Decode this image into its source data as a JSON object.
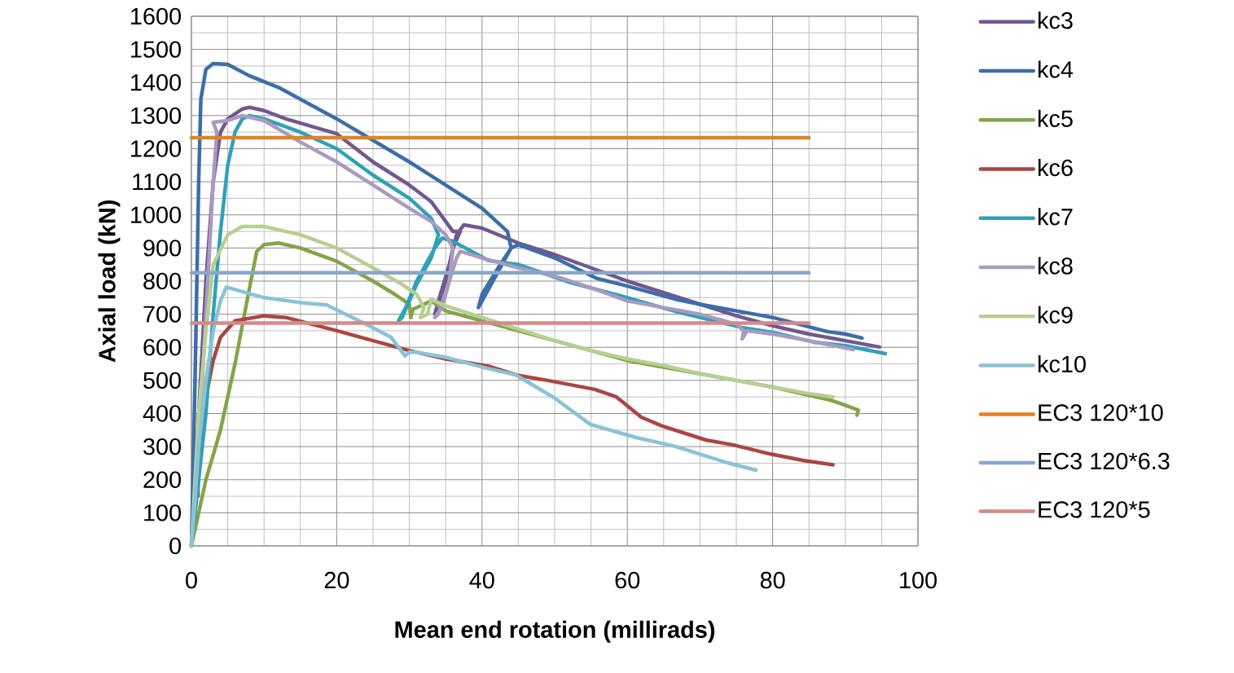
{
  "chart_data": {
    "type": "line",
    "xlabel": "Mean end rotation (millirads)",
    "ylabel": "Axial load (kN)",
    "xlim": [
      0,
      100
    ],
    "xticks": [
      0,
      20,
      40,
      60,
      80,
      100
    ],
    "ylim": [
      0,
      1600
    ],
    "yticks": [
      0,
      100,
      200,
      300,
      400,
      500,
      600,
      700,
      800,
      900,
      1000,
      1100,
      1200,
      1300,
      1400,
      1500,
      1600
    ],
    "grid": true,
    "legend": "right",
    "marker": "none",
    "line_style": "solid",
    "series": [
      {
        "name": "kc3",
        "color": "#71588f",
        "x": [
          0,
          1,
          2,
          3,
          4,
          5,
          7,
          8,
          10,
          13,
          20,
          25,
          30,
          33,
          35,
          36,
          37,
          36,
          35,
          34,
          33.5,
          34,
          35.5,
          36.5,
          37.5,
          40,
          45,
          50,
          55,
          60,
          65,
          70,
          75,
          80,
          85,
          90,
          94.7
        ],
        "values": [
          0,
          400,
          800,
          1100,
          1250,
          1290,
          1320,
          1325,
          1315,
          1290,
          1245,
          1160,
          1090,
          1040,
          980,
          950,
          950,
          900,
          800,
          720,
          700,
          740,
          850,
          940,
          970,
          960,
          915,
          880,
          840,
          800,
          765,
          730,
          695,
          665,
          640,
          620,
          601
        ]
      },
      {
        "name": "kc4",
        "color": "#3c6ea9",
        "x": [
          0,
          0.5,
          1,
          1.3,
          2,
          3,
          5,
          8,
          12,
          20,
          30,
          40,
          43.5,
          44,
          41,
          39.5,
          40,
          42.5,
          44,
          45,
          50,
          55.8,
          60,
          67,
          70,
          78.3,
          80,
          87.6,
          90,
          92.3
        ],
        "values": [
          0,
          500,
          1100,
          1350,
          1440,
          1457,
          1455,
          1420,
          1385,
          1290,
          1160,
          1020,
          950,
          900,
          780,
          720,
          760,
          850,
          900,
          910,
          870,
          808,
          785,
          743,
          730,
          697,
          690,
          647,
          640,
          628
        ]
      },
      {
        "name": "kc5",
        "color": "#84a449",
        "x": [
          0,
          1,
          2,
          4,
          6,
          8,
          9,
          10,
          12,
          15,
          20,
          25,
          28,
          30,
          30.2,
          30.5,
          33,
          35,
          40,
          45,
          50,
          55,
          60,
          65,
          70,
          75,
          80,
          85,
          88,
          90,
          91.8,
          91.6
        ],
        "values": [
          0,
          100,
          200,
          350,
          550,
          780,
          890,
          910,
          915,
          900,
          860,
          800,
          760,
          730,
          690,
          715,
          740,
          710,
          680,
          650,
          620,
          590,
          560,
          540,
          520,
          500,
          480,
          455,
          440,
          425,
          410,
          395
        ]
      },
      {
        "name": "kc6",
        "color": "#aa4643",
        "x": [
          0.9,
          1,
          2,
          3,
          4,
          6,
          10,
          13,
          20,
          30,
          35,
          40.9,
          45,
          49,
          55.5,
          58.5,
          61.9,
          64.8,
          70.8,
          74.6,
          79.6,
          84.3,
          88.3
        ],
        "values": [
          150,
          300,
          450,
          560,
          630,
          680,
          695,
          690,
          650,
          590,
          565,
          543,
          515,
          500,
          473,
          450,
          389,
          362,
          320,
          305,
          278,
          258,
          245
        ]
      },
      {
        "name": "kc7",
        "color": "#31a0b9",
        "x": [
          0,
          2,
          3,
          4,
          5,
          6,
          7,
          8,
          10,
          15,
          20,
          25,
          30,
          33,
          34,
          33,
          31,
          29,
          28.5,
          29.5,
          31,
          33.5,
          34.5,
          36,
          40.9,
          45,
          52.1,
          60,
          67,
          75.7,
          80,
          85.8,
          90,
          95.5
        ],
        "values": [
          0,
          400,
          700,
          950,
          1150,
          1250,
          1290,
          1300,
          1290,
          1250,
          1200,
          1120,
          1050,
          990,
          940,
          870,
          790,
          690,
          680,
          720,
          800,
          900,
          930,
          920,
          862,
          850,
          796,
          750,
          706,
          660,
          645,
          615,
          605,
          581
        ]
      },
      {
        "name": "kc8",
        "color": "#a99bc0",
        "x": [
          0,
          1,
          2,
          3,
          3.5,
          3,
          5,
          7,
          10,
          15,
          20,
          25,
          30,
          33,
          35,
          36,
          35.5,
          34.5,
          33.5,
          34,
          35.5,
          36.5,
          37,
          40,
          45,
          50,
          55,
          60,
          65,
          70,
          75,
          76,
          75.8,
          76.5,
          80,
          85,
          91.1
        ],
        "values": [
          0,
          300,
          700,
          1100,
          1250,
          1280,
          1285,
          1300,
          1285,
          1220,
          1160,
          1090,
          1020,
          980,
          940,
          900,
          800,
          720,
          690,
          700,
          800,
          870,
          890,
          870,
          840,
          815,
          780,
          740,
          720,
          700,
          670,
          650,
          625,
          650,
          640,
          620,
          593
        ]
      },
      {
        "name": "kc9",
        "color": "#b7cf92",
        "x": [
          0,
          1,
          2,
          3,
          5,
          7,
          10,
          15,
          20,
          25,
          29,
          31,
          32,
          31.5,
          32.5,
          33,
          35,
          40,
          45,
          50,
          55,
          60,
          65,
          70,
          75,
          80,
          85,
          88.3
        ],
        "values": [
          0,
          400,
          650,
          850,
          940,
          965,
          965,
          940,
          900,
          840,
          790,
          760,
          720,
          690,
          700,
          745,
          725,
          690,
          655,
          620,
          590,
          565,
          545,
          520,
          500,
          480,
          460,
          450
        ]
      },
      {
        "name": "kc10",
        "color": "#8ac3d6",
        "x": [
          0,
          1,
          2,
          3,
          4,
          4.8,
          10,
          15,
          18.6,
          24,
          27.5,
          29.4,
          30,
          31,
          35,
          40,
          44.6,
          49.9,
          54.9,
          61.1,
          66.7,
          73.8,
          77.7
        ],
        "values": [
          0,
          300,
          500,
          650,
          740,
          782,
          750,
          735,
          728,
          670,
          630,
          574,
          586,
          585,
          570,
          540,
          517,
          448,
          367,
          328,
          300,
          251,
          229
        ]
      },
      {
        "name": "EC3 120*10",
        "color": "#e08325",
        "x": [
          0,
          85
        ],
        "values": [
          1233,
          1233
        ]
      },
      {
        "name": "EC3 120*6.3",
        "color": "#8aa6cc",
        "x": [
          0,
          85
        ],
        "values": [
          825,
          825
        ]
      },
      {
        "name": "EC3 120*5",
        "color": "#d58a8a",
        "x": [
          0,
          85
        ],
        "values": [
          673,
          673
        ]
      }
    ]
  }
}
